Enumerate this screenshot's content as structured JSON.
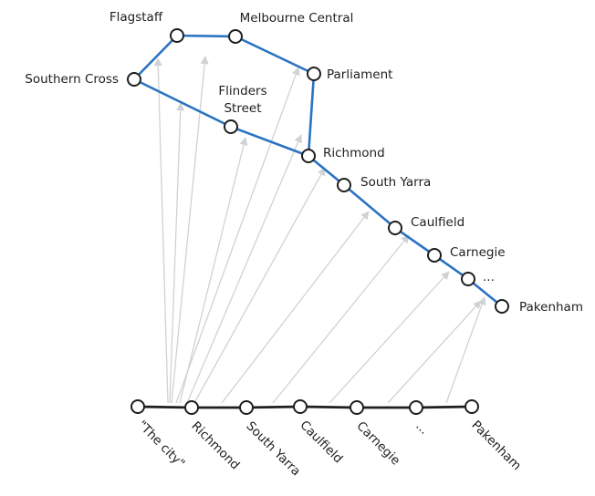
{
  "diagram": {
    "title": "",
    "route": {
      "stations": [
        {
          "id": "flagstaff",
          "label": "Flagstaff"
        },
        {
          "id": "melbourne-central",
          "label": "Melbourne Central"
        },
        {
          "id": "southern-cross",
          "label": "Southern Cross"
        },
        {
          "id": "parliament",
          "label": "Parliament"
        },
        {
          "id": "flinders-street",
          "label": "Flinders\nStreet"
        },
        {
          "id": "richmond",
          "label": "Richmond"
        },
        {
          "id": "south-yarra",
          "label": "South Yarra"
        },
        {
          "id": "caulfield",
          "label": "Caulfield"
        },
        {
          "id": "carnegie",
          "label": "Carnegie"
        },
        {
          "id": "ellipsis",
          "label": "..."
        },
        {
          "id": "pakenham",
          "label": "Pakenham"
        }
      ],
      "edges": [
        [
          "southern-cross",
          "flagstaff"
        ],
        [
          "flagstaff",
          "melbourne-central"
        ],
        [
          "melbourne-central",
          "parliament"
        ],
        [
          "parliament",
          "richmond"
        ],
        [
          "southern-cross",
          "flinders-street"
        ],
        [
          "flinders-street",
          "richmond"
        ],
        [
          "richmond",
          "south-yarra"
        ],
        [
          "south-yarra",
          "caulfield"
        ],
        [
          "caulfield",
          "carnegie"
        ],
        [
          "carnegie",
          "ellipsis"
        ],
        [
          "ellipsis",
          "pakenham"
        ]
      ]
    },
    "baseline": {
      "stops": [
        {
          "id": "the-city",
          "label": "\"The city\""
        },
        {
          "id": "richmond",
          "label": "Richmond"
        },
        {
          "id": "south-yarra",
          "label": "South Yarra"
        },
        {
          "id": "caulfield",
          "label": "Caulfield"
        },
        {
          "id": "carnegie",
          "label": "Carnegie"
        },
        {
          "id": "ellipsis",
          "label": "..."
        },
        {
          "id": "pakenham",
          "label": "Pakenham"
        }
      ]
    },
    "mapping": [
      {
        "from": "the-city",
        "to": "southern-cross"
      },
      {
        "from": "the-city",
        "to": "flagstaff"
      },
      {
        "from": "the-city",
        "to": "melbourne-central"
      },
      {
        "from": "the-city",
        "to": "parliament"
      },
      {
        "from": "the-city",
        "to": "flinders-street"
      },
      {
        "from": "the-city",
        "to": "richmond"
      },
      {
        "from": "richmond",
        "to": "richmond"
      },
      {
        "from": "south-yarra",
        "to": "south-yarra"
      },
      {
        "from": "caulfield",
        "to": "caulfield"
      },
      {
        "from": "carnegie",
        "to": "carnegie"
      },
      {
        "from": "ellipsis",
        "to": "ellipsis"
      },
      {
        "from": "pakenham",
        "to": "pakenham"
      }
    ],
    "colors": {
      "route_line": "#2a73c2",
      "baseline": "#1e1e1e",
      "arrows": "#cfd2d6",
      "node_fill": "#ffffff",
      "node_stroke": "#1e1e1e",
      "text": "#1e1e1e"
    }
  }
}
